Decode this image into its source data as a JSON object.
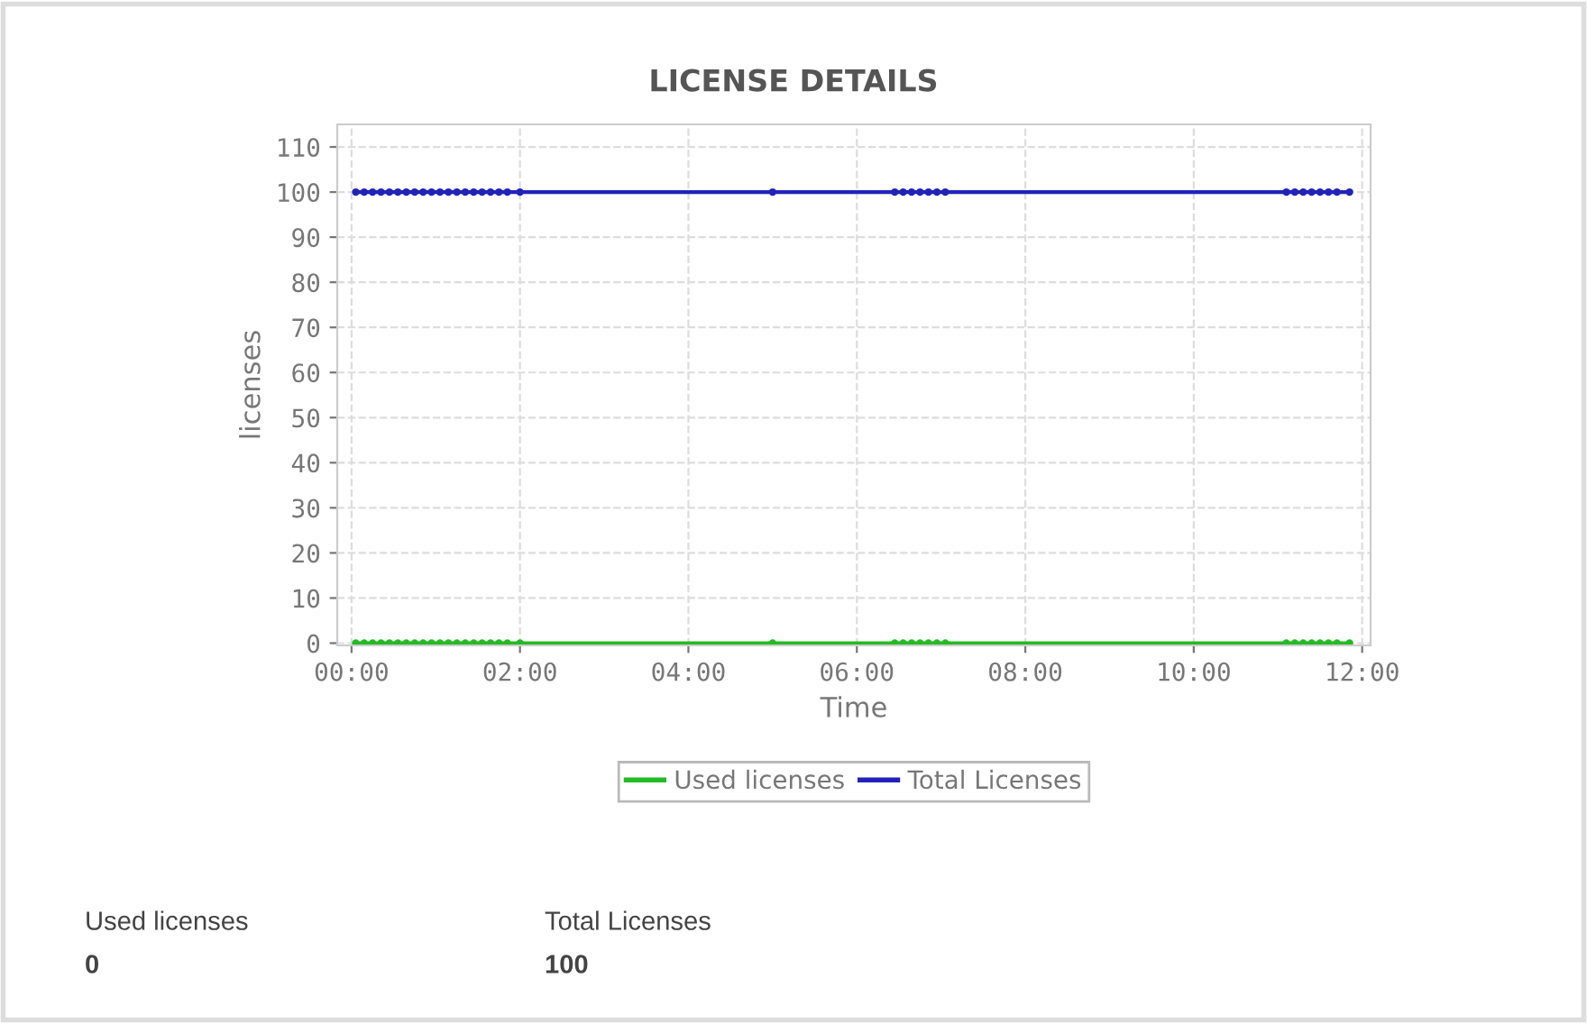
{
  "chart_data": {
    "type": "line",
    "title": "LICENSE DETAILS",
    "xlabel": "Time",
    "ylabel": "licenses",
    "x": [
      0.05,
      0.15,
      0.25,
      0.35,
      0.45,
      0.55,
      0.65,
      0.75,
      0.85,
      0.95,
      1.05,
      1.15,
      1.25,
      1.35,
      1.45,
      1.55,
      1.65,
      1.75,
      1.85,
      2.0,
      5.0,
      6.45,
      6.55,
      6.65,
      6.75,
      6.85,
      6.95,
      7.05,
      11.1,
      11.2,
      11.3,
      11.4,
      11.5,
      11.6,
      11.7,
      11.85
    ],
    "series": [
      {
        "name": "Used licenses",
        "color": "#22bb22",
        "values": [
          0,
          0,
          0,
          0,
          0,
          0,
          0,
          0,
          0,
          0,
          0,
          0,
          0,
          0,
          0,
          0,
          0,
          0,
          0,
          0,
          0,
          0,
          0,
          0,
          0,
          0,
          0,
          0,
          0,
          0,
          0,
          0,
          0,
          0,
          0,
          0
        ]
      },
      {
        "name": "Total Licenses",
        "color": "#2222bb",
        "values": [
          100,
          100,
          100,
          100,
          100,
          100,
          100,
          100,
          100,
          100,
          100,
          100,
          100,
          100,
          100,
          100,
          100,
          100,
          100,
          100,
          100,
          100,
          100,
          100,
          100,
          100,
          100,
          100,
          100,
          100,
          100,
          100,
          100,
          100,
          100,
          100
        ]
      }
    ],
    "xlim": [
      -0.17,
      12.1
    ],
    "ylim": [
      -0.5,
      115
    ],
    "xticks": [
      {
        "value": 0,
        "label": "00:00"
      },
      {
        "value": 2,
        "label": "02:00"
      },
      {
        "value": 4,
        "label": "04:00"
      },
      {
        "value": 6,
        "label": "06:00"
      },
      {
        "value": 8,
        "label": "08:00"
      },
      {
        "value": 10,
        "label": "10:00"
      },
      {
        "value": 12,
        "label": "12:00"
      }
    ],
    "yticks": [
      0,
      10,
      20,
      30,
      40,
      50,
      60,
      70,
      80,
      90,
      100,
      110
    ],
    "grid": true,
    "legend": "bottom",
    "marker": "circle",
    "line_style": "solid",
    "annotations": [
      "Used licenses",
      "0",
      "Total Licenses",
      "100"
    ]
  }
}
